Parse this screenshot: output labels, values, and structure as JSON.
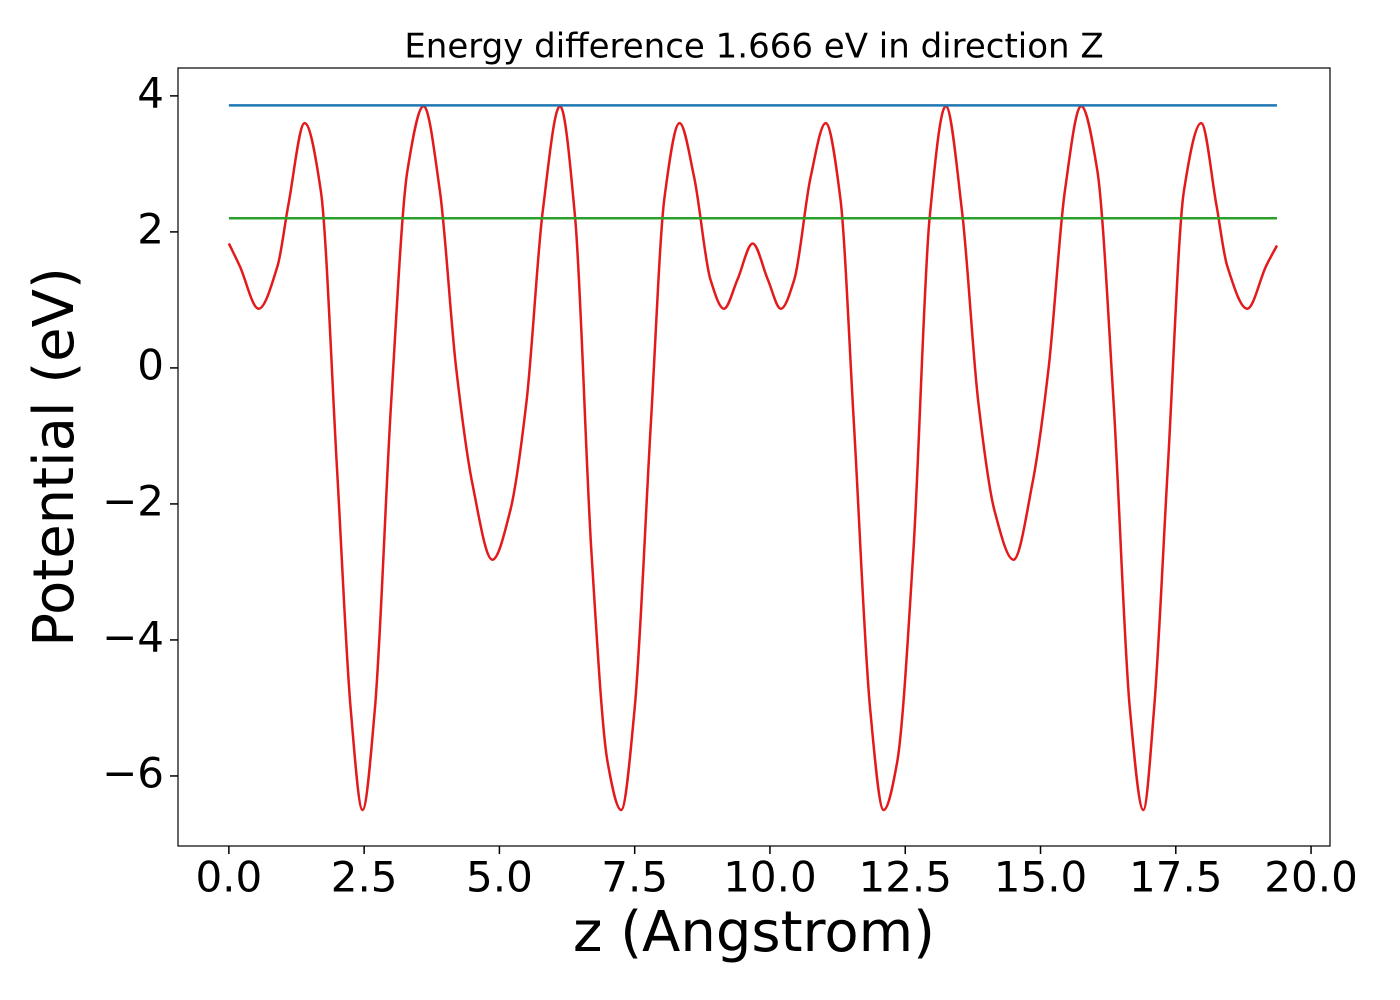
{
  "chart_data": {
    "type": "line",
    "title": "Energy difference 1.666 eV in direction Z",
    "x_label": "z (Angstrom)",
    "y_label": "Potential (eV)",
    "xlim": [
      -0.94,
      20.35
    ],
    "ylim": [
      -7.03,
      4.41
    ],
    "xticks": [
      {
        "value": 0,
        "label": "0.0"
      },
      2.5,
      {
        "value": 5,
        "label": "5.0"
      },
      7.5,
      {
        "value": 10,
        "label": "10.0"
      },
      12.5,
      {
        "value": 15,
        "label": "15.0"
      },
      17.5,
      {
        "value": 20,
        "label": "20.0"
      }
    ],
    "yticks": [
      {
        "value": -6,
        "label": "−6"
      },
      {
        "value": -4,
        "label": "−4"
      },
      {
        "value": -2,
        "label": "−2"
      },
      0,
      2,
      4
    ],
    "series": [
      {
        "color": "#e31a1c",
        "x": [
          0,
          0.2,
          0.55,
          0.9,
          1.1,
          1.4,
          1.7,
          2.0,
          2.25,
          2.47,
          2.7,
          3.0,
          3.3,
          3.6,
          3.9,
          4.2,
          4.5,
          4.87,
          5.2,
          5.5,
          5.8,
          6.12,
          6.4,
          6.7,
          7.0,
          7.25,
          7.5,
          7.8,
          8.05,
          8.33,
          8.6,
          8.9,
          9.15,
          9.4,
          9.68,
          9.96,
          10.2,
          10.45,
          10.75,
          11.03,
          11.3,
          11.55,
          11.85,
          12.1,
          12.35,
          12.65,
          12.95,
          13.25,
          13.55,
          13.85,
          14.15,
          14.5,
          14.85,
          15.15,
          15.45,
          15.75,
          16.05,
          16.35,
          16.65,
          16.9,
          17.1,
          17.35,
          17.65,
          17.97,
          18.25,
          18.45,
          18.82,
          19.17,
          19.37
        ],
        "values": [
          1.83,
          1.5,
          0.87,
          1.5,
          2.4,
          3.6,
          2.6,
          -1.5,
          -5.0,
          -6.5,
          -5.0,
          -0.5,
          2.9,
          3.85,
          2.6,
          0.0,
          -1.7,
          -2.82,
          -2.1,
          -0.5,
          2.3,
          3.85,
          2.2,
          -2.7,
          -5.8,
          -6.5,
          -5.0,
          -0.8,
          2.5,
          3.6,
          2.8,
          1.3,
          0.87,
          1.3,
          1.83,
          1.3,
          0.87,
          1.3,
          2.8,
          3.6,
          2.5,
          -0.8,
          -5.0,
          -6.5,
          -5.8,
          -2.7,
          2.2,
          3.85,
          2.3,
          -0.5,
          -2.1,
          -2.82,
          -1.7,
          0.0,
          2.6,
          3.85,
          2.9,
          -0.5,
          -5.0,
          -6.5,
          -5.0,
          -1.5,
          2.6,
          3.6,
          2.4,
          1.5,
          0.87,
          1.5,
          1.8
        ]
      },
      {
        "color": "#1f77b4",
        "x": [
          0,
          19.37
        ],
        "values": [
          3.86,
          3.86
        ]
      },
      {
        "color": "#2ca02c",
        "x": [
          0,
          19.37
        ],
        "values": [
          2.2,
          2.2
        ]
      }
    ]
  }
}
